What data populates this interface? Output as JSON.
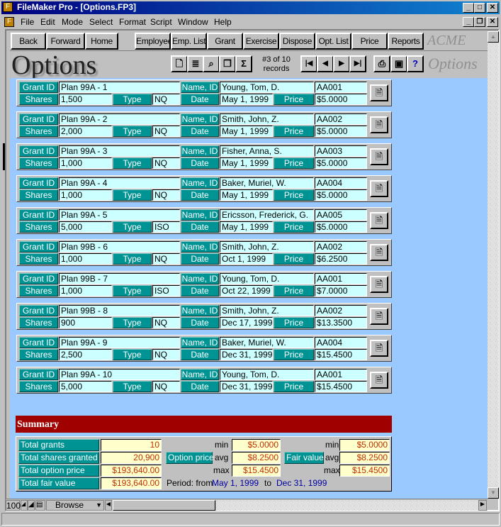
{
  "window": {
    "title": "FileMaker Pro - [Options.FP3]",
    "min": "_",
    "max": "□",
    "close": "✕",
    "restore": "❐"
  },
  "menu": [
    "File",
    "Edit",
    "Mode",
    "Select",
    "Format",
    "Script",
    "Window",
    "Help"
  ],
  "nav": {
    "back": "Back",
    "forward": "Forward",
    "home": "Home"
  },
  "toolbar": [
    "Employee",
    "Emp. List",
    "Grant",
    "Exercise",
    "Dispose",
    "Opt. List",
    "Price",
    "Reports"
  ],
  "brand": "ACME",
  "layout_title": "Options",
  "layout_title_right": "Options",
  "record_counter": "#3 of 10 records",
  "labels": {
    "grant_id": "Grant ID",
    "shares": "Shares",
    "type": "Type",
    "name_id": "Name, ID",
    "date": "Date",
    "price": "Price"
  },
  "records": [
    {
      "grant": "Plan 99A - 1",
      "shares": "1,500",
      "type": "NQ",
      "name": "Young, Tom, D.",
      "id": "AA001",
      "date": "May 1, 1999",
      "price": "$5.0000"
    },
    {
      "grant": "Plan 99A - 2",
      "shares": "2,000",
      "type": "NQ",
      "name": "Smith, John, Z.",
      "id": "AA002",
      "date": "May 1, 1999",
      "price": "$5.0000"
    },
    {
      "grant": "Plan 99A - 3",
      "shares": "1,000",
      "type": "NQ",
      "name": "Fisher, Anna, S.",
      "id": "AA003",
      "date": "May 1, 1999",
      "price": "$5.0000"
    },
    {
      "grant": "Plan 99A - 4",
      "shares": "1,000",
      "type": "NQ",
      "name": "Baker, Muriel, W.",
      "id": "AA004",
      "date": "May 1, 1999",
      "price": "$5.0000"
    },
    {
      "grant": "Plan 99A - 5",
      "shares": "5,000",
      "type": "ISO",
      "name": "Ericsson, Frederick, G.",
      "id": "AA005",
      "date": "May 1, 1999",
      "price": "$5.0000"
    },
    {
      "grant": "Plan 99B - 6",
      "shares": "1,000",
      "type": "NQ",
      "name": "Smith, John, Z.",
      "id": "AA002",
      "date": "Oct 1, 1999",
      "price": "$6.2500"
    },
    {
      "grant": "Plan 99B - 7",
      "shares": "1,000",
      "type": "ISO",
      "name": "Young, Tom, D.",
      "id": "AA001",
      "date": "Oct 22, 1999",
      "price": "$7.0000"
    },
    {
      "grant": "Plan 99B - 8",
      "shares": "900",
      "type": "NQ",
      "name": "Smith, John, Z.",
      "id": "AA002",
      "date": "Dec 17, 1999",
      "price": "$13.3500"
    },
    {
      "grant": "Plan 99A - 9",
      "shares": "2,500",
      "type": "NQ",
      "name": "Baker, Muriel, W.",
      "id": "AA004",
      "date": "Dec 31, 1999",
      "price": "$15.4500"
    },
    {
      "grant": "Plan 99A - 10",
      "shares": "5,000",
      "type": "NQ",
      "name": "Young, Tom, D.",
      "id": "AA001",
      "date": "Dec 31, 1999",
      "price": "$15.4500"
    }
  ],
  "summary": {
    "title": "Summary",
    "total_grants_label": "Total grants",
    "total_grants": "10",
    "total_shares_label": "Total shares granted",
    "total_shares": "20,900",
    "total_option_price_label": "Total option price",
    "total_option_price": "$193,640.00",
    "total_fair_value_label": "Total fair value",
    "total_fair_value": "$193,640.00",
    "option_price_label": "Option price",
    "fair_value_label": "Fair value",
    "min_label": "min",
    "avg_label": "avg",
    "max_label": "max",
    "op_min": "$5.0000",
    "op_avg": "$8.2500",
    "op_max": "$15.4500",
    "fv_min": "$5.0000",
    "fv_avg": "$8.2500",
    "fv_max": "$15.4500",
    "period_label": "Period: from",
    "period_from": "May 1, 1999",
    "to_label": "to",
    "period_to": "Dec 31, 1999"
  },
  "status": {
    "zoom": "100",
    "mode": "Browse"
  },
  "colors": {
    "label_teal": "#009393",
    "field_cyan": "#ccffff",
    "content_blue": "#99c9ff",
    "summary_red": "#a00000",
    "summary_value": "#c03000",
    "period_blue": "#0000a0"
  }
}
